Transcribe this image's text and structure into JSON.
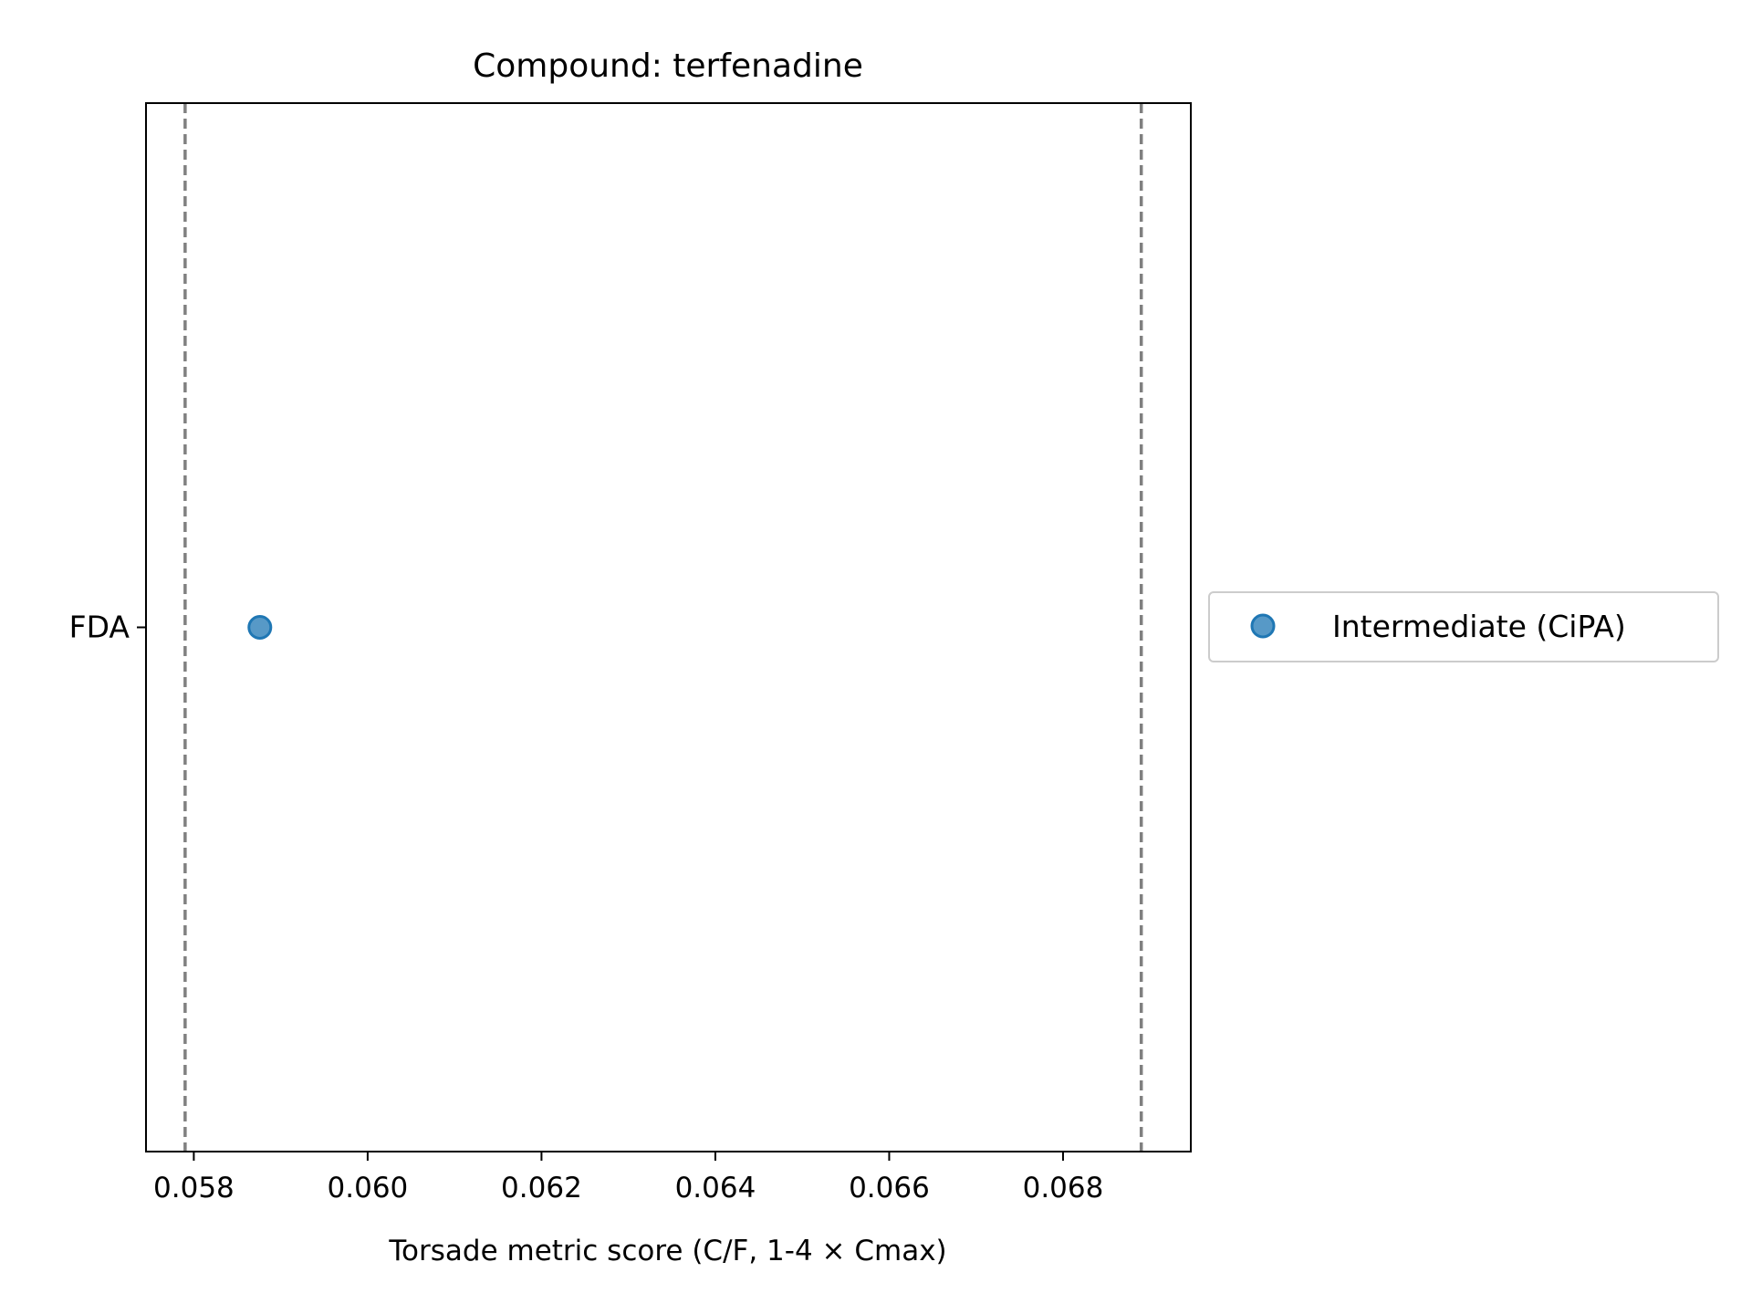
{
  "chart_data": {
    "type": "scatter",
    "title": "Compound: terfenadine",
    "xlabel": "Torsade metric score (C/F, 1-4 × Cmax)",
    "ylabel": "",
    "xlim": [
      0.05745,
      0.06947
    ],
    "xticks": [
      0.058,
      0.06,
      0.062,
      0.064,
      0.066,
      0.068
    ],
    "xtick_labels": [
      "0.058",
      "0.060",
      "0.062",
      "0.064",
      "0.066",
      "0.068"
    ],
    "categories": [
      "FDA"
    ],
    "series": [
      {
        "name": "Intermediate (CiPA)",
        "color": "#1f77b4",
        "points": [
          {
            "x": 0.05876,
            "y": "FDA"
          }
        ]
      }
    ],
    "reference_lines": [
      {
        "x": 0.0579,
        "style": "dashed",
        "color": "#808080"
      },
      {
        "x": 0.0689,
        "style": "dashed",
        "color": "#808080"
      }
    ],
    "grid": false,
    "legend_position": "outside-right"
  }
}
